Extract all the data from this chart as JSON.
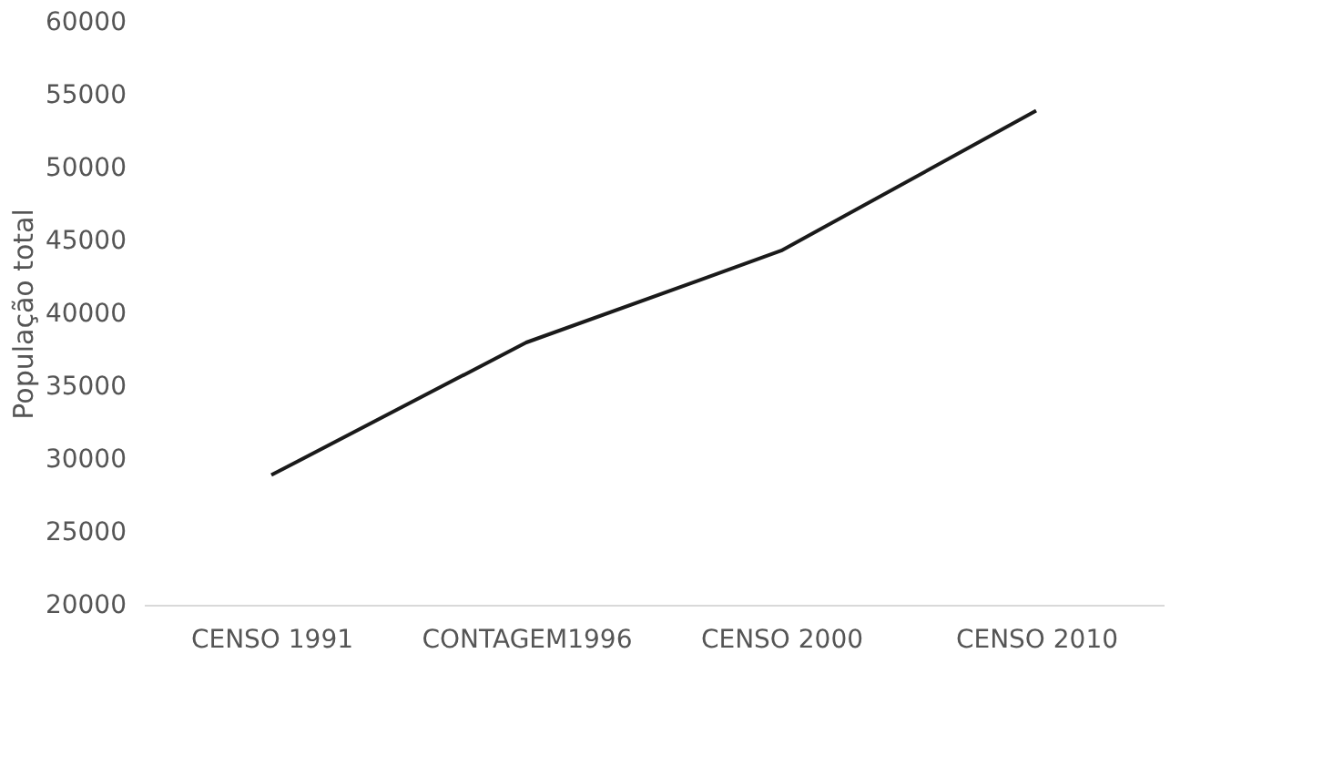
{
  "chart_data": {
    "type": "line",
    "ylabel": "População total",
    "categories": [
      "CENSO 1991",
      "CONTAGEM1996",
      "CENSO 2000",
      "CENSO 2010"
    ],
    "series": [
      {
        "color": "#1a1a1a",
        "values": [
          28900,
          38000,
          44300,
          53900
        ]
      }
    ],
    "ylim": [
      20000,
      60000
    ],
    "yticks": [
      20000,
      25000,
      30000,
      35000,
      40000,
      45000,
      50000,
      55000,
      60000
    ],
    "grid": false,
    "marker": "none",
    "line_style": "solid"
  }
}
